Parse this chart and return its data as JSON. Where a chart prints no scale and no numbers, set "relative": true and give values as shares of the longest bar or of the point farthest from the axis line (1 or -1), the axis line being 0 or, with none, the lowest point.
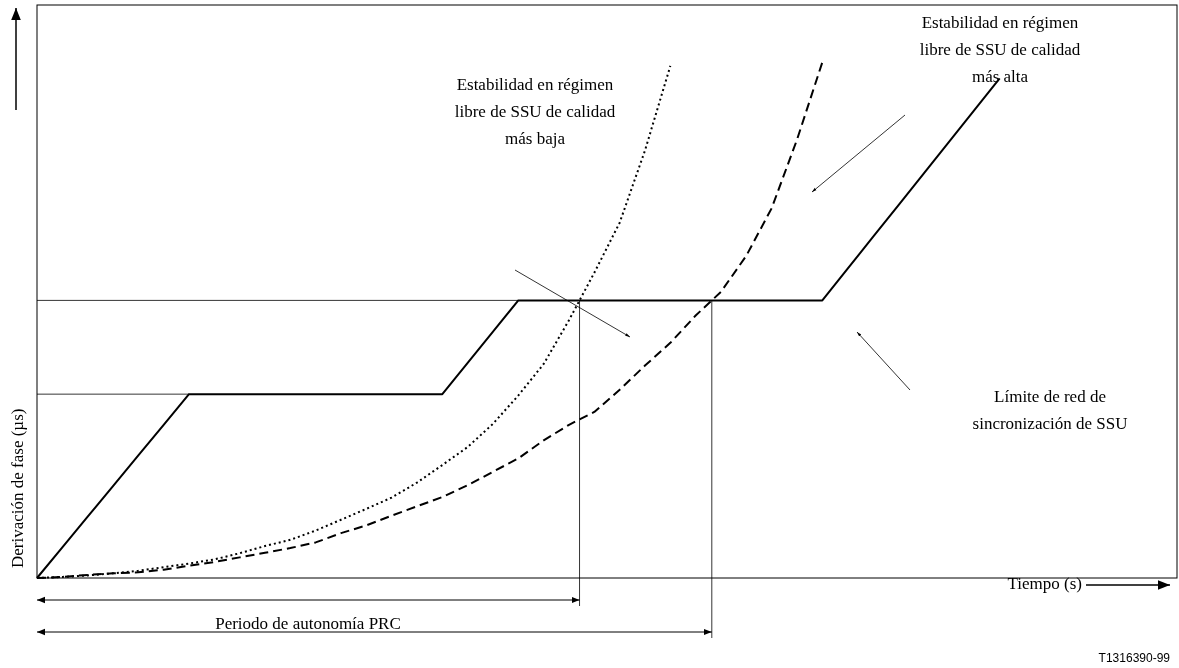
{
  "chart_data": {
    "type": "line",
    "relative": true,
    "xlabel": "Tiempo (s)",
    "ylabel": "Derivación de fase (µs)",
    "categories": [
      null,
      null,
      null,
      null,
      null,
      null,
      null,
      null,
      null,
      null,
      null,
      null,
      null,
      null,
      null,
      null,
      null,
      null,
      null,
      null,
      null,
      null,
      null,
      null,
      null,
      null,
      null,
      null,
      null,
      null,
      null,
      null,
      null,
      null,
      null,
      null,
      null,
      null,
      null,
      null,
      null,
      null,
      null,
      null,
      null,
      null
    ],
    "series": [
      {
        "color": "#000000",
        "line_style": "solid",
        "values": [
          0,
          0.0594,
          0.1188,
          0.1783,
          0.2377,
          0.2971,
          0.3565,
          0.3565,
          0.3565,
          0.3565,
          0.3565,
          0.3565,
          0.3565,
          0.3565,
          0.3565,
          0.3565,
          0.3565,
          0.4171,
          0.4777,
          0.5383,
          0.5383,
          0.5383,
          0.5383,
          0.5383,
          0.5383,
          0.5383,
          0.5383,
          0.5383,
          0.5383,
          0.5383,
          0.5383,
          0.5383,
          0.5998,
          0.6613,
          0.7228,
          0.7843,
          0.8459,
          0.9074,
          0.9689,
          null,
          null,
          null,
          null,
          null,
          null,
          null
        ]
      },
      {
        "color": "#000000",
        "line_style": "dotted",
        "values": [
          0,
          0.002,
          0.005,
          0.009,
          0.014,
          0.021,
          0.028,
          0.036,
          0.048,
          0.062,
          0.074,
          0.092,
          0.113,
          0.134,
          0.156,
          0.185,
          0.219,
          0.254,
          0.299,
          0.354,
          0.415,
          0.5,
          0.592,
          0.689,
          0.829,
          0.993,
          null,
          null,
          null,
          null,
          null,
          null,
          null,
          null,
          null,
          null,
          null,
          null,
          null,
          null,
          null,
          null,
          null,
          null,
          null,
          null
        ]
      },
      {
        "color": "#000000",
        "line_style": "dashed",
        "values": [
          0,
          0.002,
          0.006,
          0.009,
          0.011,
          0.016,
          0.024,
          0.031,
          0.04,
          0.049,
          0.058,
          0.069,
          0.087,
          0.102,
          0.121,
          0.139,
          0.157,
          0.18,
          0.206,
          0.232,
          0.267,
          0.297,
          0.322,
          0.365,
          0.412,
          0.456,
          0.509,
          0.555,
          0.625,
          0.717,
          0.85,
          1,
          null,
          null,
          null,
          null,
          null,
          null,
          null,
          null,
          null,
          null,
          null,
          null,
          null,
          null
        ]
      }
    ],
    "ref_lines": [
      {
        "axis": "y",
        "value": 0.3565
      },
      {
        "axis": "y",
        "value": 0.5383
      }
    ],
    "annotations": [
      "Estabilidad en régimen libre de SSU de calidad más baja",
      "Estabilidad en régimen libre de SSU de calidad más alta",
      "Límite de red de sincronización de SSU",
      "Periodo de autonomía PRC",
      "T1316390-99"
    ]
  }
}
